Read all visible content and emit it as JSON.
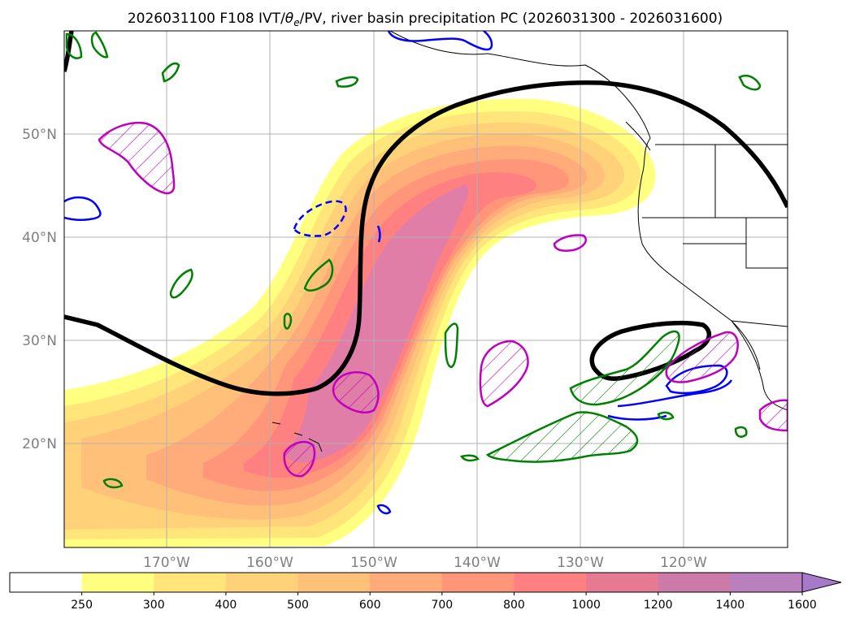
{
  "title_prefix": "2026031100 F108 IVT/",
  "title_theta": "θ",
  "title_sub": "e",
  "title_suffix": "/PV, river basin precipitation PC (2026031300 - 2026031600)",
  "map": {
    "lat_labels": [
      "50°N",
      "40°N",
      "30°N",
      "20°N"
    ],
    "lon_labels": [
      "170°W",
      "160°W",
      "150°W",
      "140°W",
      "130°W",
      "120°W"
    ],
    "colors": {
      "ivt_core": "#e07ea8",
      "theta_e_contour": "#000000",
      "pv_contour": "#0000ff",
      "precip_green": "#008000",
      "precip_magenta": "#c000c0"
    }
  },
  "colorbar": {
    "levels": [
      "250",
      "300",
      "400",
      "500",
      "600",
      "700",
      "800",
      "1000",
      "1200",
      "1400",
      "1600"
    ],
    "colors": [
      "#ffffff",
      "#ffff80",
      "#ffe57a",
      "#ffd27a",
      "#ffc07a",
      "#ffab7a",
      "#ff967a",
      "#ff8080",
      "#e67a93",
      "#cc7aa8",
      "#b880bd",
      "#a57ac9"
    ]
  }
}
